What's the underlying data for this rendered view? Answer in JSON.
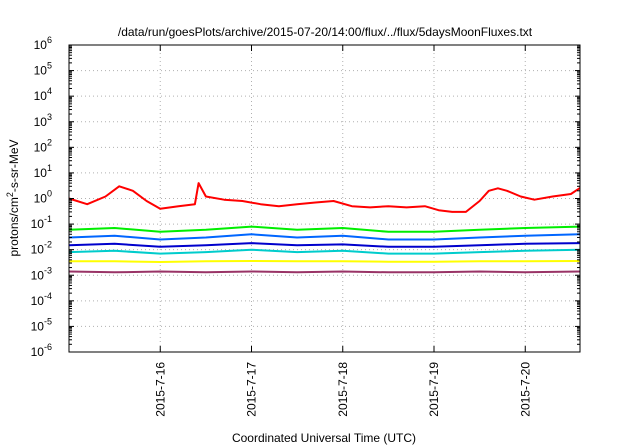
{
  "chart_data": {
    "type": "line",
    "title": "/data/run/goesPlots/archive/2015-07-20/14:00/flux/../flux/5daysMoonFluxes.txt",
    "xlabel": "Coordinated Universal Time (UTC)",
    "ylabel_parts": {
      "base": "protons/cm",
      "sup": "2",
      "rest": "-s-sr-MeV"
    },
    "y_scale": "log",
    "ylim_exp": [
      -6,
      6
    ],
    "y_ticks": [
      {
        "base": "10",
        "exp": "-6"
      },
      {
        "base": "10",
        "exp": "-5"
      },
      {
        "base": "10",
        "exp": "-4"
      },
      {
        "base": "10",
        "exp": "-3"
      },
      {
        "base": "10",
        "exp": "-2"
      },
      {
        "base": "10",
        "exp": "-1"
      },
      {
        "base": "10",
        "exp": "0"
      },
      {
        "base": "10",
        "exp": "1"
      },
      {
        "base": "10",
        "exp": "2"
      },
      {
        "base": "10",
        "exp": "3"
      },
      {
        "base": "10",
        "exp": "4"
      },
      {
        "base": "10",
        "exp": "5"
      },
      {
        "base": "10",
        "exp": "6"
      }
    ],
    "x_range_days": [
      15.0,
      20.6
    ],
    "x_ticks": [
      {
        "label": "2015-7-16",
        "day": 16
      },
      {
        "label": "2015-7-17",
        "day": 17
      },
      {
        "label": "2015-7-18",
        "day": 18
      },
      {
        "label": "2015-7-19",
        "day": 19
      },
      {
        "label": "2015-7-20",
        "day": 20
      }
    ],
    "grid": true,
    "series": [
      {
        "color": "#ff0000",
        "x": [
          15.0,
          15.2,
          15.4,
          15.55,
          15.7,
          15.85,
          16.0,
          16.2,
          16.38,
          16.42,
          16.5,
          16.7,
          16.9,
          17.1,
          17.3,
          17.5,
          17.7,
          17.9,
          18.1,
          18.3,
          18.5,
          18.7,
          18.9,
          19.05,
          19.2,
          19.35,
          19.5,
          19.6,
          19.7,
          19.8,
          19.95,
          20.1,
          20.3,
          20.5,
          20.6
        ],
        "y": [
          1.0,
          0.6,
          1.2,
          3.0,
          2.0,
          0.8,
          0.4,
          0.5,
          0.6,
          4.0,
          1.2,
          0.9,
          0.8,
          0.6,
          0.5,
          0.6,
          0.7,
          0.8,
          0.5,
          0.45,
          0.5,
          0.45,
          0.5,
          0.35,
          0.3,
          0.3,
          0.8,
          2.0,
          2.5,
          2.0,
          1.2,
          0.9,
          1.2,
          1.5,
          2.6
        ]
      },
      {
        "color": "#00ee00",
        "x": [
          15.0,
          15.5,
          16.0,
          16.5,
          17.0,
          17.5,
          18.0,
          18.5,
          19.0,
          19.5,
          20.0,
          20.6
        ],
        "y": [
          0.06,
          0.07,
          0.05,
          0.06,
          0.08,
          0.06,
          0.07,
          0.05,
          0.05,
          0.06,
          0.07,
          0.08
        ]
      },
      {
        "color": "#0066ff",
        "x": [
          15.0,
          15.5,
          16.0,
          16.5,
          17.0,
          17.5,
          18.0,
          18.5,
          19.0,
          19.5,
          20.0,
          20.6
        ],
        "y": [
          0.03,
          0.035,
          0.025,
          0.03,
          0.04,
          0.03,
          0.035,
          0.025,
          0.025,
          0.03,
          0.035,
          0.04
        ]
      },
      {
        "color": "#00cccc",
        "x": [
          15.0,
          15.5,
          16.0,
          16.5,
          17.0,
          17.5,
          18.0,
          18.5,
          19.0,
          19.5,
          20.0,
          20.6
        ],
        "y": [
          0.008,
          0.009,
          0.007,
          0.008,
          0.01,
          0.008,
          0.009,
          0.007,
          0.007,
          0.008,
          0.009,
          0.01
        ]
      },
      {
        "color": "#0000cc",
        "x": [
          15.0,
          15.5,
          16.0,
          16.5,
          17.0,
          17.5,
          18.0,
          18.5,
          19.0,
          19.5,
          20.0,
          20.6
        ],
        "y": [
          0.015,
          0.017,
          0.013,
          0.015,
          0.018,
          0.015,
          0.016,
          0.013,
          0.013,
          0.015,
          0.017,
          0.018
        ]
      },
      {
        "color": "#ffff00",
        "x": [
          15.0,
          15.5,
          16.0,
          16.5,
          17.0,
          17.5,
          18.0,
          18.5,
          19.0,
          19.5,
          20.0,
          20.6
        ],
        "y": [
          0.0035,
          0.0035,
          0.0033,
          0.0035,
          0.0036,
          0.0035,
          0.0035,
          0.0034,
          0.0034,
          0.0035,
          0.0035,
          0.0036
        ]
      },
      {
        "color": "#993366",
        "x": [
          15.0,
          15.5,
          16.0,
          16.5,
          17.0,
          17.5,
          18.0,
          18.5,
          19.0,
          19.5,
          20.0,
          20.6
        ],
        "y": [
          0.0014,
          0.0013,
          0.0014,
          0.0013,
          0.0014,
          0.0013,
          0.0014,
          0.0013,
          0.0013,
          0.0014,
          0.0013,
          0.0014
        ]
      }
    ]
  }
}
